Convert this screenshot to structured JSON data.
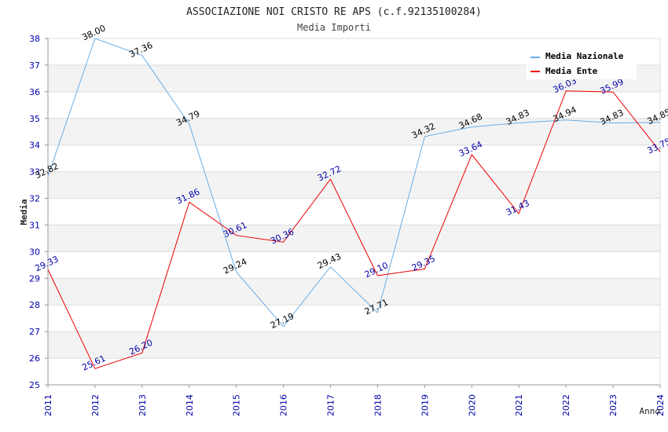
{
  "chart_data": {
    "type": "line",
    "title": "ASSOCIAZIONE NOI CRISTO RE APS (c.f.92135100284)",
    "subtitle": "Media Importi",
    "xlabel": "Anno",
    "ylabel": "Media",
    "ylim": [
      25,
      38
    ],
    "yticks": [
      25,
      26,
      27,
      28,
      29,
      30,
      31,
      32,
      33,
      34,
      35,
      36,
      37,
      38
    ],
    "x": [
      "2011",
      "2012",
      "2013",
      "2014",
      "2015",
      "2016",
      "2017",
      "2018",
      "2019",
      "2020",
      "2021",
      "2022",
      "2023",
      "2024"
    ],
    "grid": true,
    "legend_position": "top-right",
    "series": [
      {
        "name": "Media Nazionale",
        "color": "#6aaee6",
        "label_color": "#000000",
        "values": [
          32.82,
          38.0,
          37.36,
          34.79,
          29.24,
          27.19,
          29.43,
          27.71,
          34.32,
          34.68,
          34.83,
          34.94,
          34.83,
          34.85
        ],
        "labels": [
          "32.82",
          "38.00",
          "37.36",
          "34.79",
          "29.24",
          "27.19",
          "29.43",
          "27.71",
          "34.32",
          "34.68",
          "34.83",
          "34.94",
          "34.83",
          "34.85"
        ]
      },
      {
        "name": "Media Ente",
        "color": "#ee0000",
        "label_color": "#0000aa",
        "values": [
          29.33,
          25.61,
          26.2,
          31.86,
          30.61,
          30.36,
          32.72,
          29.1,
          29.35,
          33.64,
          31.43,
          36.03,
          35.99,
          33.75
        ],
        "labels": [
          "29.33",
          "25.61",
          "26.20",
          "31.86",
          "30.61",
          "30.36",
          "32.72",
          "29.10",
          "29.35",
          "33.64",
          "31.43",
          "36.03",
          "35.99",
          "33.75"
        ]
      }
    ]
  }
}
